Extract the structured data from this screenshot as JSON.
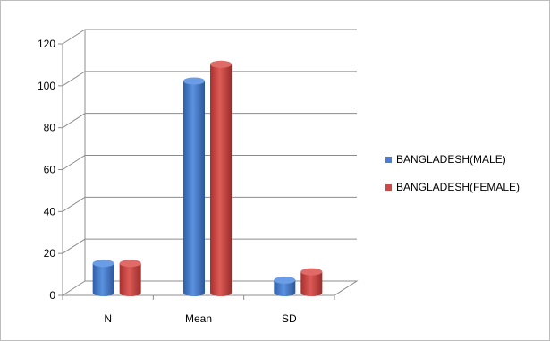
{
  "chart_data": {
    "type": "bar",
    "title": "",
    "xlabel": "",
    "ylabel": "",
    "categories": [
      "N",
      "Mean",
      "SD"
    ],
    "ylim": [
      0,
      120
    ],
    "yticks": [
      "0",
      "20",
      "40",
      "60",
      "80",
      "100",
      "120"
    ],
    "grid": true,
    "legend_position": "right",
    "series": [
      {
        "name": "BANGLADESH(MALE)",
        "color": "#4a7fcf",
        "values": [
          14,
          101,
          6
        ]
      },
      {
        "name": "BANGLADESH(FEMALE)",
        "color": "#c94a47",
        "values": [
          14,
          109,
          10
        ]
      }
    ]
  }
}
